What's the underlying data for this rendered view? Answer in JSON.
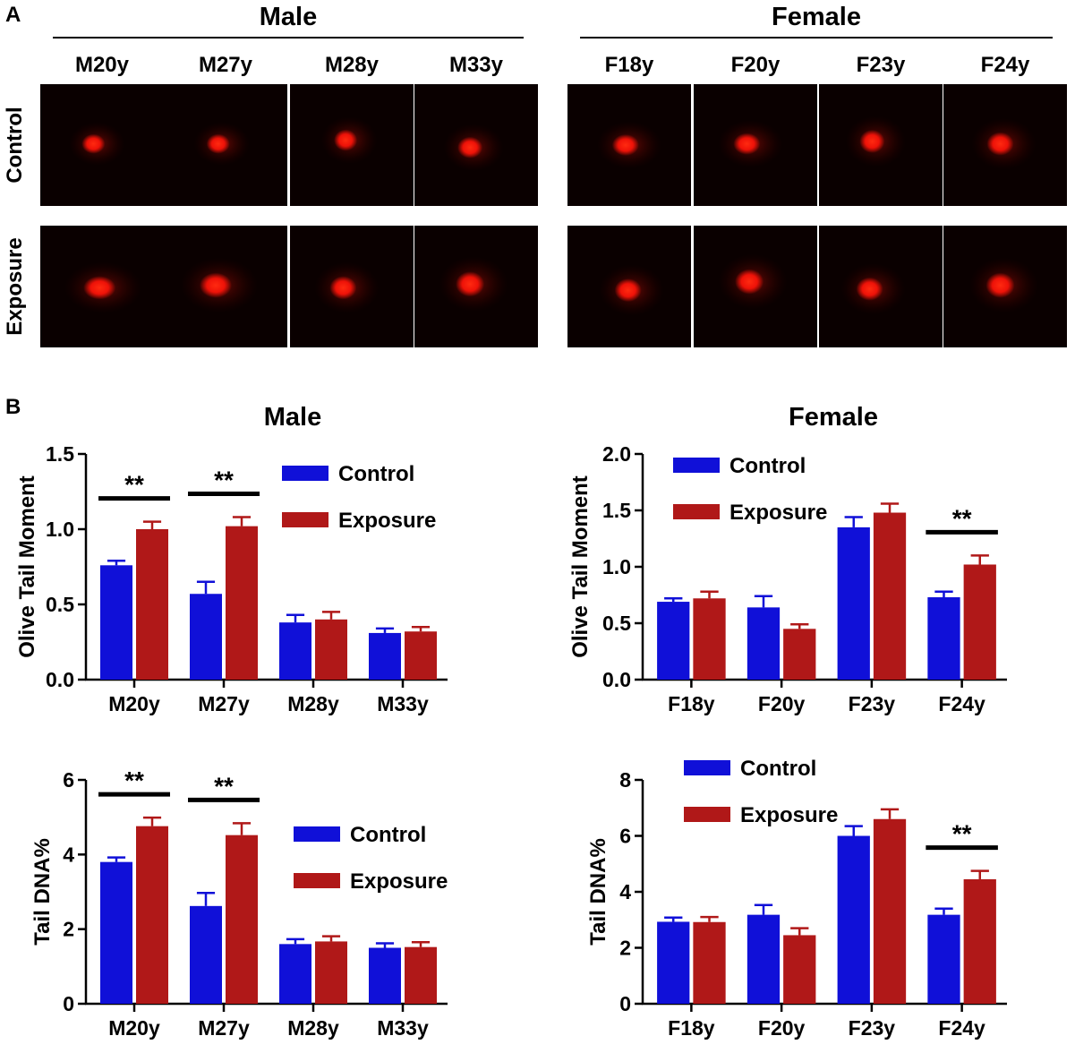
{
  "figure": {
    "panel_a_label": "A",
    "panel_b_label": "B"
  },
  "panel_a": {
    "row_labels": [
      "Control",
      "Exposure"
    ],
    "groups": [
      {
        "title": "Male",
        "samples": [
          "M20y",
          "M27y",
          "M28y",
          "M33y"
        ]
      },
      {
        "title": "Female",
        "samples": [
          "F18y",
          "F20y",
          "F23y",
          "F24y"
        ]
      }
    ],
    "colors": {
      "background": "#0a0000",
      "spot": "#ff1a0a"
    }
  },
  "chart_data": [
    {
      "type": "bar",
      "title": "Male",
      "ylabel": "Olive Tail Moment",
      "xlabel": "",
      "categories": [
        "M20y",
        "M27y",
        "M28y",
        "M33y"
      ],
      "ylim": [
        0,
        1.5
      ],
      "yticks": [
        0.0,
        0.5,
        1.0,
        1.5
      ],
      "ytick_labels": [
        "0.0",
        "0.5",
        "1.0",
        "1.5"
      ],
      "series": [
        {
          "name": "Control",
          "color": "#1010d8",
          "values": [
            0.76,
            0.57,
            0.38,
            0.31
          ],
          "errors": [
            0.03,
            0.08,
            0.05,
            0.03
          ]
        },
        {
          "name": "Exposure",
          "color": "#b01818",
          "values": [
            1.0,
            1.02,
            0.4,
            0.32
          ],
          "errors": [
            0.05,
            0.06,
            0.05,
            0.03
          ]
        }
      ],
      "significance": [
        {
          "category": 0,
          "label": "**"
        },
        {
          "category": 1,
          "label": "**"
        }
      ],
      "legend": "top-right",
      "grid": false
    },
    {
      "type": "bar",
      "title": "Female",
      "ylabel": "Olive Tail Moment",
      "xlabel": "",
      "categories": [
        "F18y",
        "F20y",
        "F23y",
        "F24y"
      ],
      "ylim": [
        0,
        2.0
      ],
      "yticks": [
        0.0,
        0.5,
        1.0,
        1.5,
        2.0
      ],
      "ytick_labels": [
        "0.0",
        "0.5",
        "1.0",
        "1.5",
        "2.0"
      ],
      "series": [
        {
          "name": "Control",
          "color": "#1010d8",
          "values": [
            0.69,
            0.64,
            1.35,
            0.73
          ],
          "errors": [
            0.03,
            0.1,
            0.09,
            0.05
          ]
        },
        {
          "name": "Exposure",
          "color": "#b01818",
          "values": [
            0.72,
            0.45,
            1.48,
            1.02
          ],
          "errors": [
            0.06,
            0.04,
            0.08,
            0.08
          ]
        }
      ],
      "significance": [
        {
          "category": 3,
          "label": "**"
        }
      ],
      "legend": "top-left",
      "grid": false
    },
    {
      "type": "bar",
      "title": "",
      "ylabel": "Tail DNA%",
      "xlabel": "",
      "categories": [
        "M20y",
        "M27y",
        "M28y",
        "M33y"
      ],
      "ylim": [
        0,
        6
      ],
      "yticks": [
        0,
        2,
        4,
        6
      ],
      "ytick_labels": [
        "0",
        "2",
        "4",
        "6"
      ],
      "series": [
        {
          "name": "Control",
          "color": "#1010d8",
          "values": [
            3.8,
            2.62,
            1.6,
            1.5
          ],
          "errors": [
            0.12,
            0.35,
            0.13,
            0.12
          ]
        },
        {
          "name": "Exposure",
          "color": "#b01818",
          "values": [
            4.76,
            4.52,
            1.67,
            1.52
          ],
          "errors": [
            0.23,
            0.32,
            0.14,
            0.13
          ]
        }
      ],
      "significance": [
        {
          "category": 0,
          "label": "**"
        },
        {
          "category": 1,
          "label": "**"
        }
      ],
      "legend": "right",
      "grid": false
    },
    {
      "type": "bar",
      "title": "",
      "ylabel": "Tail DNA%",
      "xlabel": "",
      "categories": [
        "F18y",
        "F20y",
        "F23y",
        "F24y"
      ],
      "ylim": [
        0,
        8
      ],
      "yticks": [
        0,
        2,
        4,
        6,
        8
      ],
      "ytick_labels": [
        "0",
        "2",
        "4",
        "6",
        "8"
      ],
      "series": [
        {
          "name": "Control",
          "color": "#1010d8",
          "values": [
            2.93,
            3.18,
            6.0,
            3.18
          ],
          "errors": [
            0.15,
            0.35,
            0.35,
            0.22
          ]
        },
        {
          "name": "Exposure",
          "color": "#b01818",
          "values": [
            2.92,
            2.45,
            6.6,
            4.45
          ],
          "errors": [
            0.18,
            0.25,
            0.35,
            0.3
          ]
        }
      ],
      "significance": [
        {
          "category": 3,
          "label": "**"
        }
      ],
      "legend": "top-left",
      "grid": false
    }
  ]
}
